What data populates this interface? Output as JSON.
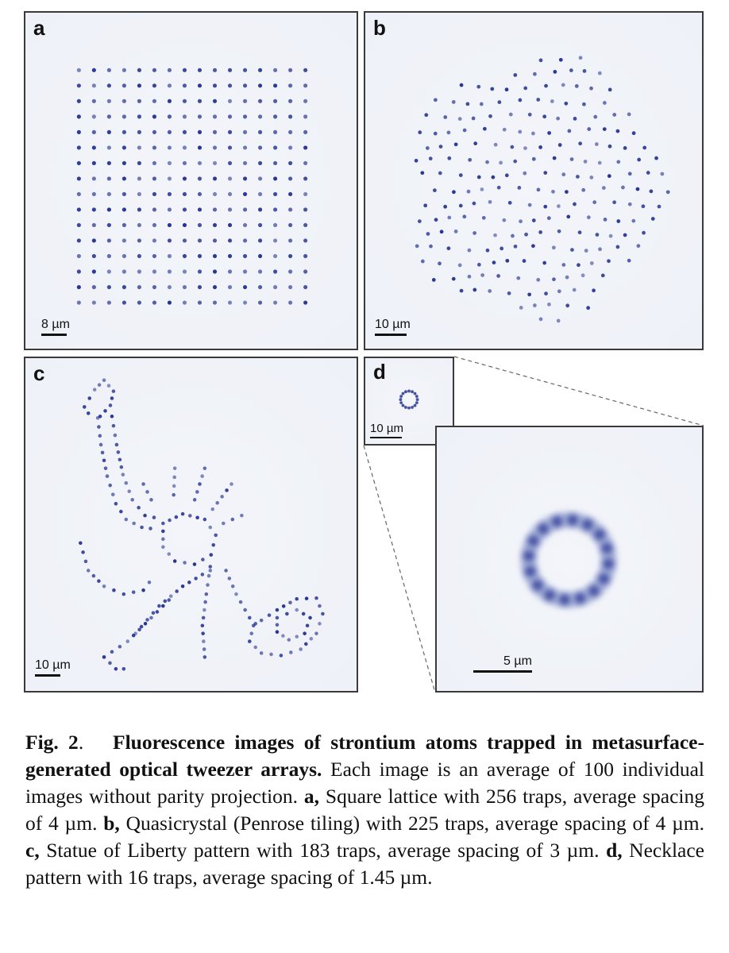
{
  "panels": {
    "a": {
      "label": "a",
      "scale": "8 µm"
    },
    "b": {
      "label": "b",
      "scale": "10 µm"
    },
    "c": {
      "label": "c",
      "scale": "10 µm"
    },
    "d": {
      "label": "d",
      "scale": "10 µm",
      "zoom_scale": "5 µm"
    }
  },
  "colors": {
    "atom": "#1a2a8c",
    "background": "#eef1f7",
    "frame": "#3a3a3a"
  },
  "caption": {
    "fig": "Fig. 2",
    "fig_punct": ".",
    "title": "Fluorescence images of strontium atoms trapped in metasurface-generated optical tweezer arrays.",
    "intro": " Each image is an average of 100 individual images without parity projection. ",
    "a_key": "a,",
    "a_text": " Square lattice with 256 traps, average spacing of 4 µm. ",
    "b_key": "b,",
    "b_text": " Quasicrystal (Penrose tiling) with 225 traps, average spacing of 4 µm. ",
    "c_key": "c,",
    "c_text": " Statue of Liberty pattern with 183 traps, average spacing of 3 µm. ",
    "d_key": "d,",
    "d_text": " Necklace pattern with 16 traps, average spacing of 1.45 µm."
  }
}
